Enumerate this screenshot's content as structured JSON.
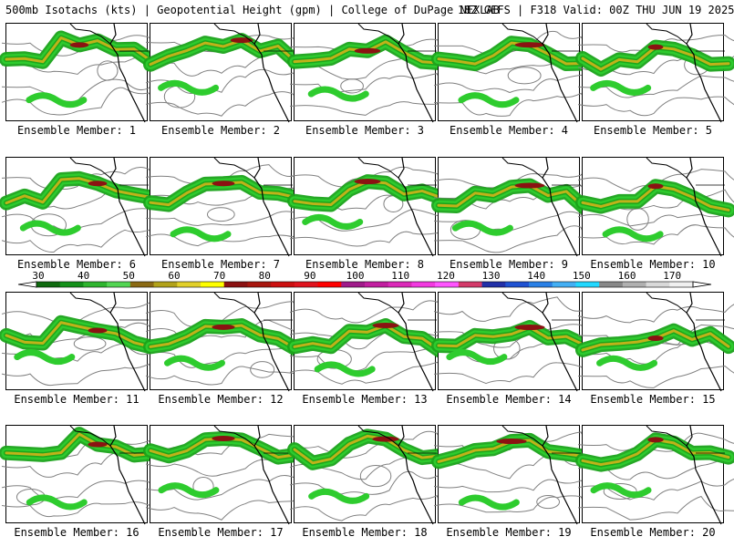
{
  "header": {
    "left": "500mb Isotachs (kts) | Geopotential Height (gpm) | College of DuPage NEXLAB",
    "right": "18Z GEFS | F318 Valid: 00Z THU JUN 19 2025"
  },
  "colorbar": {
    "labels": [
      "30",
      "40",
      "50",
      "60",
      "70",
      "80",
      "90",
      "100",
      "110",
      "120",
      "130",
      "140",
      "150",
      "160",
      "170"
    ],
    "colors": [
      "#0f6a0f",
      "#14911a",
      "#2fb52f",
      "#53d553",
      "#8b6a14",
      "#b2a21a",
      "#e2d02a",
      "#ffff00",
      "#8b1212",
      "#a8160f",
      "#cc1010",
      "#e0141e",
      "#ff0000",
      "#a01b8a",
      "#c21fa0",
      "#dc2ab9",
      "#f23ae0",
      "#ff55ff",
      "#d43a6a",
      "#2230a8",
      "#1f52d2",
      "#2a80e6",
      "#43aff4",
      "#22d8ff",
      "#888888",
      "#b0b0b0",
      "#d9d9d9",
      "#f0f0f0"
    ]
  },
  "members": [
    {
      "label": "Ensemble Member: 1"
    },
    {
      "label": "Ensemble Member: 2"
    },
    {
      "label": "Ensemble Member: 3"
    },
    {
      "label": "Ensemble Member: 4"
    },
    {
      "label": "Ensemble Member: 5"
    },
    {
      "label": "Ensemble Member: 6"
    },
    {
      "label": "Ensemble Member: 7"
    },
    {
      "label": "Ensemble Member: 8"
    },
    {
      "label": "Ensemble Member: 9"
    },
    {
      "label": "Ensemble Member: 10"
    },
    {
      "label": "Ensemble Member: 11"
    },
    {
      "label": "Ensemble Member: 12"
    },
    {
      "label": "Ensemble Member: 13"
    },
    {
      "label": "Ensemble Member: 14"
    },
    {
      "label": "Ensemble Member: 15"
    },
    {
      "label": "Ensemble Member: 16"
    },
    {
      "label": "Ensemble Member: 17"
    },
    {
      "label": "Ensemble Member: 18"
    },
    {
      "label": "Ensemble Member: 19"
    },
    {
      "label": "Ensemble Member: 20"
    }
  ],
  "palette": {
    "isotach_low": "#1aa31a",
    "isotach_mid": "#2ecc2e",
    "isotach_70": "#c8b21a",
    "isotach_90": "#8b1212",
    "height_contour": "#808080",
    "coastline": "#000000"
  }
}
